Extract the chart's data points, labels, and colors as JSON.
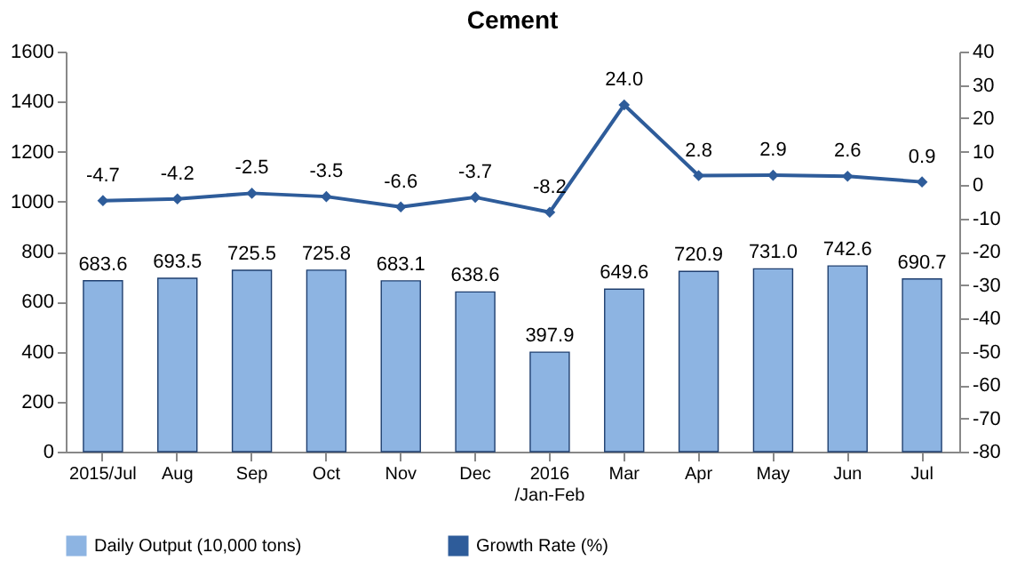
{
  "chart_data": {
    "type": "bar",
    "title": "Cement",
    "categories": [
      "2015/Jul",
      "Aug",
      "Sep",
      "Oct",
      "Nov",
      "Dec",
      "2016\n/Jan-Feb",
      "Mar",
      "Apr",
      "May",
      "Jun",
      "Jul"
    ],
    "series": [
      {
        "name": "Daily Output (10,000 tons)",
        "color": "#8db4e2",
        "values": [
          683.6,
          693.5,
          725.5,
          725.8,
          683.1,
          638.6,
          397.9,
          649.6,
          720.9,
          731.0,
          742.6,
          690.7
        ],
        "value_labels": [
          "683.6",
          "693.5",
          "725.5",
          "725.8",
          "683.1",
          "638.6",
          "397.9",
          "649.6",
          "720.9",
          "731.0",
          "742.6",
          "690.7"
        ]
      },
      {
        "name": "Growth Rate (%)",
        "type": "line",
        "axis": "y2",
        "color": "#2e5c9a",
        "marker": "diamond",
        "values": [
          -4.7,
          -4.2,
          -2.5,
          -3.5,
          -6.6,
          -3.7,
          -8.2,
          24.0,
          2.8,
          2.9,
          2.6,
          0.9
        ],
        "value_labels": [
          "-4.7",
          "-4.2",
          "-2.5",
          "-3.5",
          "-6.6",
          "-3.7",
          "-8.2",
          "24.0",
          "2.8",
          "2.9",
          "2.6",
          "0.9"
        ]
      }
    ],
    "ylim": [
      0,
      1600
    ],
    "yticks": [
      0,
      200,
      400,
      600,
      800,
      1000,
      1200,
      1400,
      1600
    ],
    "y2lim": [
      -80,
      40
    ],
    "y2ticks": [
      -80,
      -70,
      -60,
      -50,
      -40,
      -30,
      -20,
      -10,
      0,
      10,
      20,
      30,
      40
    ],
    "legend": "bottom"
  }
}
